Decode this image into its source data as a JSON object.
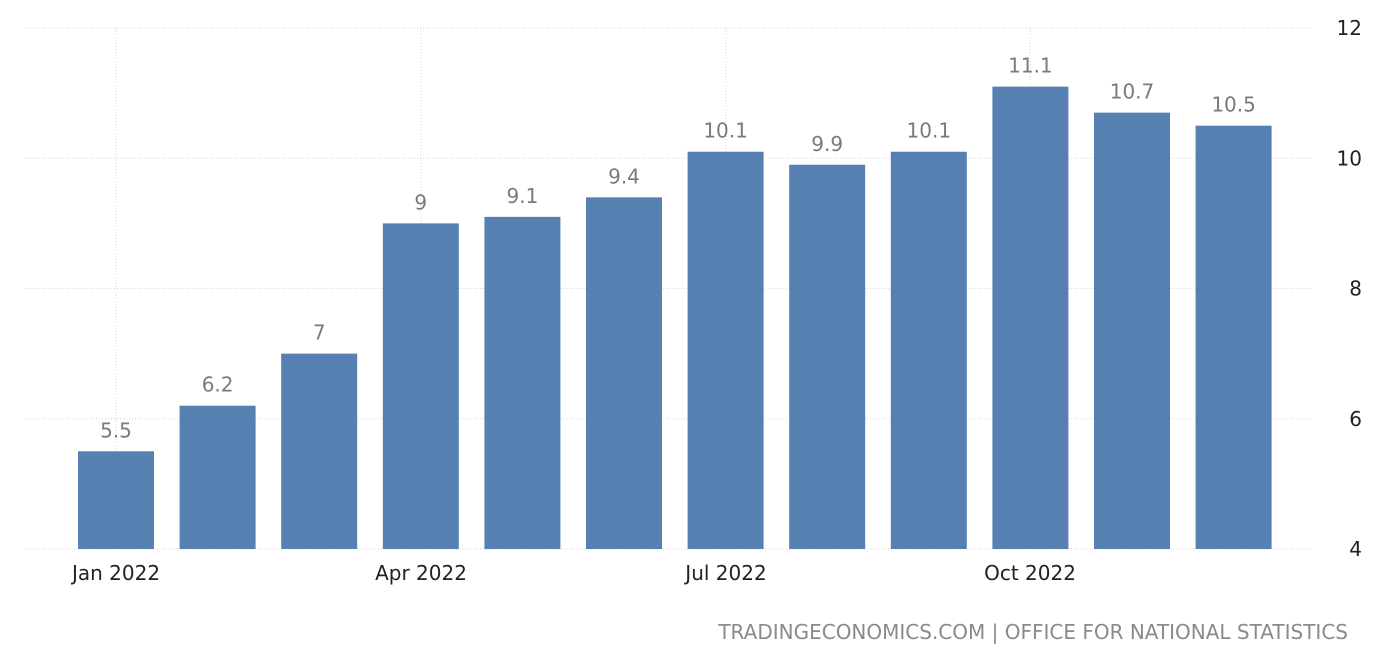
{
  "chart_data": {
    "type": "bar",
    "categories": [
      "Jan 2022",
      "Feb 2022",
      "Mar 2022",
      "Apr 2022",
      "May 2022",
      "Jun 2022",
      "Jul 2022",
      "Aug 2022",
      "Sep 2022",
      "Oct 2022",
      "Nov 2022",
      "Dec 2022"
    ],
    "values": [
      5.5,
      6.2,
      7,
      9,
      9.1,
      9.4,
      10.1,
      9.9,
      10.1,
      11.1,
      10.7,
      10.5
    ],
    "data_labels": [
      "5.5",
      "6.2",
      "7",
      "9",
      "9.1",
      "9.4",
      "10.1",
      "9.9",
      "10.1",
      "11.1",
      "10.7",
      "10.5"
    ],
    "x_tick_labels": [
      "Jan 2022",
      "Apr 2022",
      "Jul 2022",
      "Oct 2022"
    ],
    "x_tick_indices": [
      0,
      3,
      6,
      9
    ],
    "y_ticks": [
      4,
      6,
      8,
      10,
      12
    ],
    "ylim": [
      4,
      12
    ],
    "y_axis_side": "right",
    "grid": true,
    "title": "",
    "xlabel": "",
    "ylabel": "",
    "bar_color": "#5580b1"
  },
  "source": "TRADINGECONOMICS.COM | OFFICE FOR NATIONAL STATISTICS"
}
